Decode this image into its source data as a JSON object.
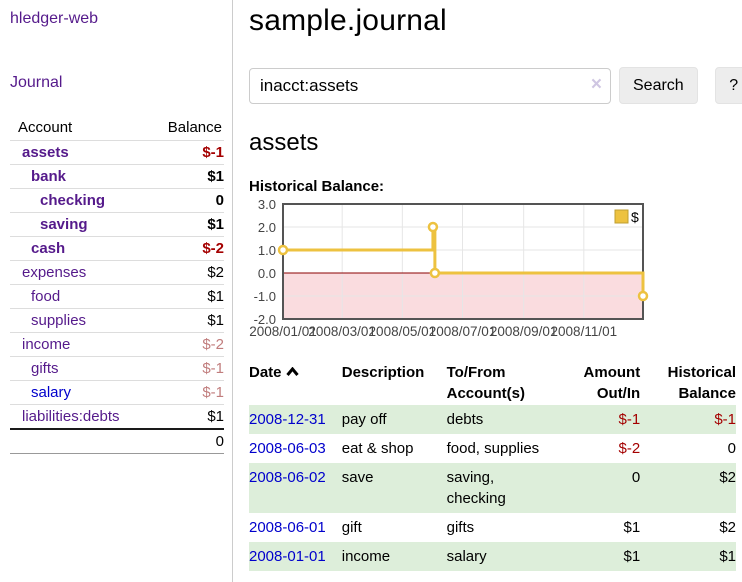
{
  "app": {
    "brand": "hledger-web",
    "nav_journal": "Journal"
  },
  "sidebar": {
    "header": {
      "account": "Account",
      "balance": "Balance"
    },
    "accounts": [
      {
        "name": "assets",
        "balance": "$-1"
      },
      {
        "name": "bank",
        "balance": "$1"
      },
      {
        "name": "checking",
        "balance": "0"
      },
      {
        "name": "saving",
        "balance": "$1"
      },
      {
        "name": "cash",
        "balance": "$-2"
      },
      {
        "name": "expenses",
        "balance": "$2"
      },
      {
        "name": "food",
        "balance": "$1"
      },
      {
        "name": "supplies",
        "balance": "$1"
      },
      {
        "name": "income",
        "balance": "$-2"
      },
      {
        "name": "gifts",
        "balance": "$-1"
      },
      {
        "name": "salary",
        "balance": "$-1"
      },
      {
        "name": "liabilities:debts",
        "balance": "$1"
      }
    ],
    "total": "0"
  },
  "header": {
    "title": "sample.journal"
  },
  "search": {
    "value": "inacct:assets",
    "clear_icon": "×",
    "button_label": "Search",
    "help_label": "?"
  },
  "account_page": {
    "heading": "assets",
    "chart_title": "Historical Balance:"
  },
  "chart_data": {
    "type": "line",
    "title": "Historical Balance",
    "step": true,
    "series": [
      {
        "name": "$",
        "color": "#edc240",
        "points": [
          {
            "x": "2008-01-01",
            "y": 1
          },
          {
            "x": "2008-06-01",
            "y": 2
          },
          {
            "x": "2008-06-03",
            "y": 0
          },
          {
            "x": "2008-12-31",
            "y": -1
          }
        ]
      }
    ],
    "x_range": [
      "2008-01-01",
      "2008-12-31"
    ],
    "y_range": [
      -2,
      3
    ],
    "y_ticks": [
      "3.0",
      "2.0",
      "1.0",
      "0.0",
      "-1.0",
      "-2.0"
    ],
    "x_ticks": [
      {
        "date": "2008-01-01",
        "label": "2008/01/01"
      },
      {
        "date": "2008-03-01",
        "label": "2008/03/01"
      },
      {
        "date": "2008-05-01",
        "label": "2008/05/01"
      },
      {
        "date": "2008-07-01",
        "label": "2008/07/01"
      },
      {
        "date": "2008-09-01",
        "label": "2008/09/01"
      },
      {
        "date": "2008-11-01",
        "label": "2008/11/01"
      }
    ],
    "grid_on": true,
    "grid_color": "#e6e6e6",
    "border_color": "#545454",
    "zero_line_color": "#8b0000",
    "negative_region_color": "#fadcdf",
    "tick_label_color": "#444444",
    "legend": {
      "label": "$",
      "position": "top-right"
    }
  },
  "register": {
    "columns": [
      "Date",
      "Description",
      "To/From Account(s)",
      "Amount Out/In",
      "Historical Balance"
    ],
    "rows": [
      {
        "date": "2008-12-31",
        "description": "pay off",
        "accounts": "debts",
        "amount": "$-1",
        "balance": "$-1"
      },
      {
        "date": "2008-06-03",
        "description": "eat & shop",
        "accounts": "food, supplies",
        "amount": "$-2",
        "balance": "0"
      },
      {
        "date": "2008-06-02",
        "description": "save",
        "accounts": "saving, checking",
        "amount": "0",
        "balance": "$2"
      },
      {
        "date": "2008-06-01",
        "description": "gift",
        "accounts": "gifts",
        "amount": "$1",
        "balance": "$2"
      },
      {
        "date": "2008-01-01",
        "description": "income",
        "accounts": "salary",
        "amount": "$1",
        "balance": "$1"
      }
    ]
  }
}
